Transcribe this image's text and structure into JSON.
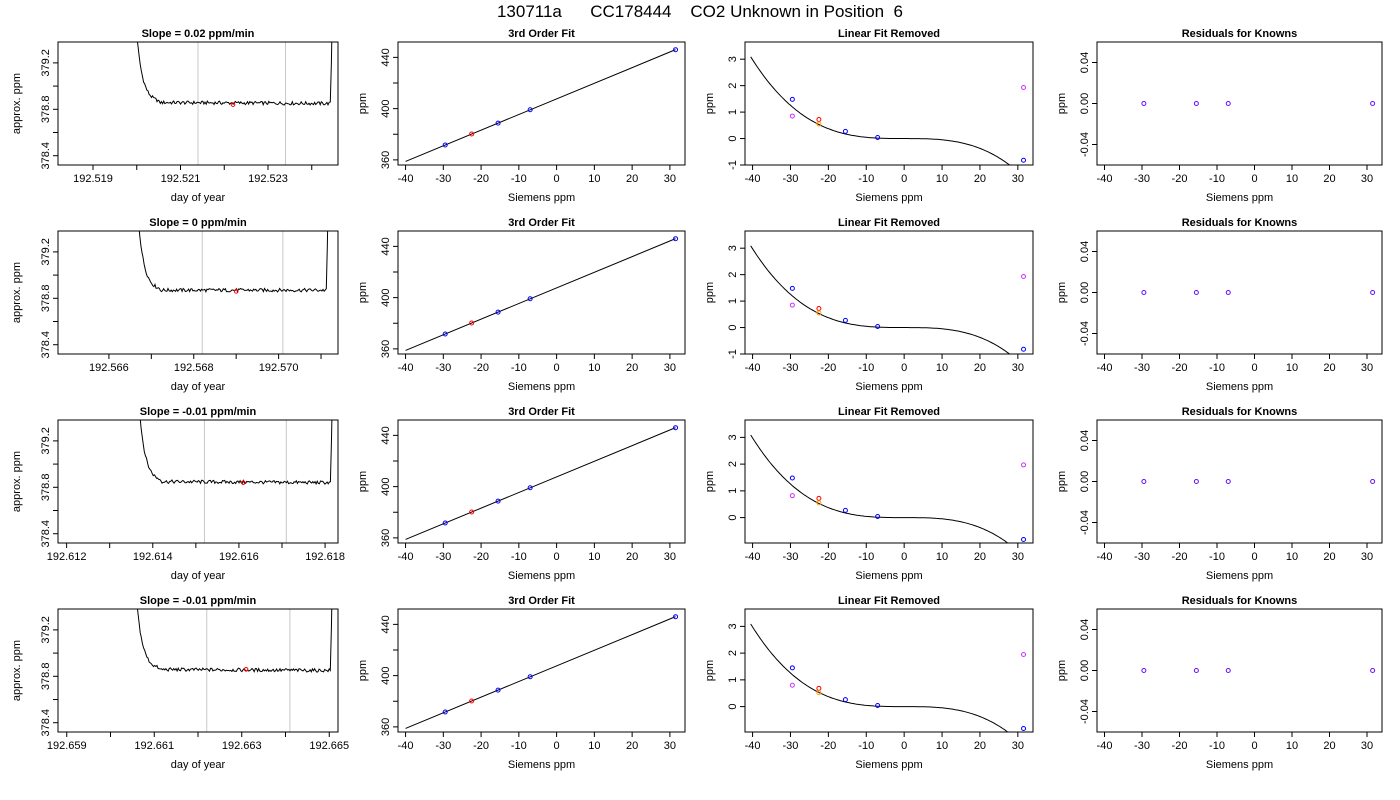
{
  "figure_title": "130711a      CC178444    CO2 Unknown in Position  6",
  "colors": {
    "line": "#000000",
    "ref_line": "#c8c8c8",
    "known": "#0000ff",
    "unknown": "#ff0000",
    "alt1": "#ffa500",
    "alt2": "#cc33ff",
    "resid": "#6a0dff"
  },
  "chart_data": [
    {
      "row": 1,
      "type": "line",
      "title": "Slope =  0.02  ppm/min",
      "xlabel": "day of year",
      "ylabel": "approx. ppm",
      "xlim": [
        192.5182,
        192.5246
      ],
      "ylim": [
        378.32,
        379.38
      ],
      "xticks": [
        192.519,
        192.52,
        192.521,
        192.522,
        192.523,
        192.524
      ],
      "xtick_labels": [
        "192.519",
        "",
        "192.521",
        "",
        "192.523",
        ""
      ],
      "yticks": [
        378.4,
        378.6,
        378.8,
        379.0,
        379.2
      ],
      "ytick_labels": [
        "378.4",
        "",
        "378.8",
        "",
        "379.2"
      ],
      "vlines": [
        192.5214,
        192.5234
      ],
      "x_start": 192.5199,
      "x_end": 192.5245,
      "baseline": 378.86,
      "drift": -0.01,
      "unknown_point": [
        192.5222,
        378.84
      ]
    },
    {
      "row": 1,
      "type": "scatter",
      "title": "3rd Order Fit",
      "xlabel": "Siemens ppm",
      "ylabel": "ppm",
      "xlim": [
        -42,
        34
      ],
      "ylim": [
        356,
        452
      ],
      "xticks": [
        -40,
        -30,
        -20,
        -10,
        0,
        10,
        20,
        30
      ],
      "yticks": [
        360,
        380,
        400,
        420,
        440
      ],
      "ytick_labels": [
        "360",
        "",
        "400",
        "",
        "440"
      ],
      "fit": {
        "slope": 1.22,
        "intercept": 407.6
      },
      "points": [
        {
          "x": -29.5,
          "y": 371.6,
          "s": "known"
        },
        {
          "x": -22.5,
          "y": 380.2,
          "s": "unknown"
        },
        {
          "x": -15.5,
          "y": 388.7,
          "s": "known"
        },
        {
          "x": -7,
          "y": 399.1,
          "s": "known"
        },
        {
          "x": 31.5,
          "y": 446.0,
          "s": "known"
        }
      ]
    },
    {
      "row": 1,
      "type": "scatter",
      "title": "Linear Fit Removed",
      "xlabel": "Siemens ppm",
      "ylabel": "ppm",
      "xlim": [
        -42,
        34
      ],
      "ylim": [
        -1.0,
        3.65
      ],
      "xticks": [
        -40,
        -30,
        -20,
        -10,
        0,
        10,
        20,
        30
      ],
      "yticks": [
        -1,
        0,
        1,
        2,
        3
      ],
      "cubic": [
        0.0,
        0.0,
        0.0,
        -4.65e-05
      ],
      "points": [
        {
          "x": -29.5,
          "y": 1.48,
          "s": "known"
        },
        {
          "x": -29.5,
          "y": 0.85,
          "s": "alt2"
        },
        {
          "x": -22.5,
          "y": 0.72,
          "s": "unknown"
        },
        {
          "x": -22.5,
          "y": 0.55,
          "s": "alt1"
        },
        {
          "x": -15.5,
          "y": 0.27,
          "s": "known"
        },
        {
          "x": -7,
          "y": 0.04,
          "s": "known"
        },
        {
          "x": 31.5,
          "y": -0.82,
          "s": "known"
        },
        {
          "x": 31.5,
          "y": 1.93,
          "s": "alt2"
        }
      ]
    },
    {
      "row": 1,
      "type": "scatter",
      "title": "Residuals for Knowns",
      "xlabel": "Siemens ppm",
      "ylabel": "ppm",
      "xlim": [
        -42,
        34
      ],
      "ylim": [
        -0.06,
        0.06
      ],
      "xticks": [
        -40,
        -30,
        -20,
        -10,
        0,
        10,
        20,
        30
      ],
      "yticks": [
        -0.04,
        0.0,
        0.04
      ],
      "ytick_labels": [
        "-0.04",
        "0.00",
        "0.04"
      ],
      "points": [
        {
          "x": -29.5,
          "y": 0,
          "s": "resid"
        },
        {
          "x": -15.5,
          "y": 0,
          "s": "resid"
        },
        {
          "x": -7,
          "y": 0,
          "s": "resid"
        },
        {
          "x": 31.5,
          "y": 0,
          "s": "resid"
        }
      ]
    },
    {
      "row": 2,
      "type": "line",
      "title": "Slope =  0  ppm/min",
      "xlabel": "day of year",
      "ylabel": "approx. ppm",
      "xlim": [
        192.5648,
        192.5714
      ],
      "ylim": [
        378.32,
        379.38
      ],
      "xticks": [
        192.566,
        192.567,
        192.568,
        192.569,
        192.57,
        192.571
      ],
      "xtick_labels": [
        "192.566",
        "",
        "192.568",
        "",
        "192.570",
        ""
      ],
      "yticks": [
        378.4,
        378.6,
        378.8,
        379.0,
        379.2
      ],
      "ytick_labels": [
        "378.4",
        "",
        "378.8",
        "",
        "379.2"
      ],
      "vlines": [
        192.5682,
        192.5701
      ],
      "x_start": 192.5666,
      "x_end": 192.5712,
      "baseline": 378.87,
      "drift": 0.0,
      "unknown_point": [
        192.569,
        378.86
      ]
    },
    {
      "row": 2,
      "type": "scatter",
      "title": "3rd Order Fit",
      "xlabel": "Siemens ppm",
      "ylabel": "ppm",
      "xlim": [
        -42,
        34
      ],
      "ylim": [
        356,
        452
      ],
      "xticks": [
        -40,
        -30,
        -20,
        -10,
        0,
        10,
        20,
        30
      ],
      "yticks": [
        360,
        380,
        400,
        420,
        440
      ],
      "ytick_labels": [
        "360",
        "",
        "400",
        "",
        "440"
      ],
      "fit": {
        "slope": 1.22,
        "intercept": 407.6
      },
      "points": [
        {
          "x": -29.5,
          "y": 371.6,
          "s": "known"
        },
        {
          "x": -22.5,
          "y": 380.2,
          "s": "unknown"
        },
        {
          "x": -15.5,
          "y": 388.7,
          "s": "known"
        },
        {
          "x": -7,
          "y": 399.1,
          "s": "known"
        },
        {
          "x": 31.5,
          "y": 446.0,
          "s": "known"
        }
      ]
    },
    {
      "row": 2,
      "type": "scatter",
      "title": "Linear Fit Removed",
      "xlabel": "Siemens ppm",
      "ylabel": "ppm",
      "xlim": [
        -42,
        34
      ],
      "ylim": [
        -1.0,
        3.65
      ],
      "xticks": [
        -40,
        -30,
        -20,
        -10,
        0,
        10,
        20,
        30
      ],
      "yticks": [
        -1,
        0,
        1,
        2,
        3
      ],
      "cubic": [
        0.0,
        0.0,
        0.0,
        -4.65e-05
      ],
      "points": [
        {
          "x": -29.5,
          "y": 1.48,
          "s": "known"
        },
        {
          "x": -29.5,
          "y": 0.85,
          "s": "alt2"
        },
        {
          "x": -22.5,
          "y": 0.72,
          "s": "unknown"
        },
        {
          "x": -22.5,
          "y": 0.55,
          "s": "alt1"
        },
        {
          "x": -15.5,
          "y": 0.27,
          "s": "known"
        },
        {
          "x": -7,
          "y": 0.04,
          "s": "known"
        },
        {
          "x": 31.5,
          "y": -0.82,
          "s": "known"
        },
        {
          "x": 31.5,
          "y": 1.93,
          "s": "alt2"
        }
      ]
    },
    {
      "row": 2,
      "type": "scatter",
      "title": "Residuals for Knowns",
      "xlabel": "Siemens ppm",
      "ylabel": "ppm",
      "xlim": [
        -42,
        34
      ],
      "ylim": [
        -0.06,
        0.06
      ],
      "xticks": [
        -40,
        -30,
        -20,
        -10,
        0,
        10,
        20,
        30
      ],
      "yticks": [
        -0.04,
        0.0,
        0.04
      ],
      "ytick_labels": [
        "-0.04",
        "0.00",
        "0.04"
      ],
      "points": [
        {
          "x": -29.5,
          "y": 0,
          "s": "resid"
        },
        {
          "x": -15.5,
          "y": 0,
          "s": "resid"
        },
        {
          "x": -7,
          "y": 0,
          "s": "resid"
        },
        {
          "x": 31.5,
          "y": 0,
          "s": "resid"
        }
      ]
    },
    {
      "row": 3,
      "type": "line",
      "title": "Slope =  -0.01  ppm/min",
      "xlabel": "day of year",
      "ylabel": "approx. ppm",
      "xlim": [
        192.6118,
        192.6183
      ],
      "ylim": [
        378.32,
        379.38
      ],
      "xticks": [
        192.612,
        192.613,
        192.614,
        192.615,
        192.616,
        192.617,
        192.618
      ],
      "xtick_labels": [
        "192.612",
        "",
        "192.614",
        "",
        "192.616",
        "",
        "192.618"
      ],
      "yticks": [
        378.4,
        378.6,
        378.8,
        379.0,
        379.2
      ],
      "ytick_labels": [
        "378.4",
        "",
        "378.8",
        "",
        "379.2"
      ],
      "vlines": [
        192.6152,
        192.6171
      ],
      "x_start": 192.6136,
      "x_end": 192.6182,
      "baseline": 378.85,
      "drift": -0.01,
      "unknown_point": [
        192.6161,
        378.84
      ]
    },
    {
      "row": 3,
      "type": "scatter",
      "title": "3rd Order Fit",
      "xlabel": "Siemens ppm",
      "ylabel": "ppm",
      "xlim": [
        -42,
        34
      ],
      "ylim": [
        356,
        452
      ],
      "xticks": [
        -40,
        -30,
        -20,
        -10,
        0,
        10,
        20,
        30
      ],
      "yticks": [
        360,
        380,
        400,
        420,
        440
      ],
      "ytick_labels": [
        "360",
        "",
        "400",
        "",
        "440"
      ],
      "fit": {
        "slope": 1.22,
        "intercept": 407.6
      },
      "points": [
        {
          "x": -29.5,
          "y": 371.6,
          "s": "known"
        },
        {
          "x": -22.5,
          "y": 380.2,
          "s": "unknown"
        },
        {
          "x": -15.5,
          "y": 388.7,
          "s": "known"
        },
        {
          "x": -7,
          "y": 399.1,
          "s": "known"
        },
        {
          "x": 31.5,
          "y": 446.0,
          "s": "known"
        }
      ]
    },
    {
      "row": 3,
      "type": "scatter",
      "title": "Linear Fit Removed",
      "xlabel": "Siemens ppm",
      "ylabel": "ppm",
      "xlim": [
        -42,
        34
      ],
      "ylim": [
        -0.95,
        3.65
      ],
      "xticks": [
        -40,
        -30,
        -20,
        -10,
        0,
        10,
        20,
        30
      ],
      "yticks": [
        0,
        1,
        2,
        3
      ],
      "cubic": [
        0.0,
        0.0,
        0.0,
        -4.65e-05
      ],
      "points": [
        {
          "x": -29.5,
          "y": 1.48,
          "s": "known"
        },
        {
          "x": -29.5,
          "y": 0.82,
          "s": "alt2"
        },
        {
          "x": -22.5,
          "y": 0.72,
          "s": "unknown"
        },
        {
          "x": -22.5,
          "y": 0.55,
          "s": "alt1"
        },
        {
          "x": -15.5,
          "y": 0.27,
          "s": "known"
        },
        {
          "x": -7,
          "y": 0.04,
          "s": "known"
        },
        {
          "x": 31.5,
          "y": -0.82,
          "s": "known"
        },
        {
          "x": 31.5,
          "y": 1.97,
          "s": "alt2"
        }
      ]
    },
    {
      "row": 3,
      "type": "scatter",
      "title": "Residuals for Knowns",
      "xlabel": "Siemens ppm",
      "ylabel": "ppm",
      "xlim": [
        -42,
        34
      ],
      "ylim": [
        -0.06,
        0.06
      ],
      "xticks": [
        -40,
        -30,
        -20,
        -10,
        0,
        10,
        20,
        30
      ],
      "yticks": [
        -0.04,
        0.0,
        0.04
      ],
      "ytick_labels": [
        "-0.04",
        "0.00",
        "0.04"
      ],
      "points": [
        {
          "x": -29.5,
          "y": 0,
          "s": "resid"
        },
        {
          "x": -15.5,
          "y": 0,
          "s": "resid"
        },
        {
          "x": -7,
          "y": 0,
          "s": "resid"
        },
        {
          "x": 31.5,
          "y": 0,
          "s": "resid"
        }
      ]
    },
    {
      "row": 4,
      "type": "line",
      "title": "Slope =  -0.01  ppm/min",
      "xlabel": "day of year",
      "ylabel": "approx. ppm",
      "xlim": [
        192.6588,
        192.6652
      ],
      "ylim": [
        378.32,
        379.38
      ],
      "xticks": [
        192.659,
        192.66,
        192.661,
        192.662,
        192.663,
        192.664,
        192.665
      ],
      "xtick_labels": [
        "192.659",
        "",
        "192.661",
        "",
        "192.663",
        "",
        "192.665"
      ],
      "yticks": [
        378.4,
        378.6,
        378.8,
        379.0,
        379.2
      ],
      "ytick_labels": [
        "378.4",
        "",
        "378.8",
        "",
        "379.2"
      ],
      "vlines": [
        192.6622,
        192.6641
      ],
      "x_start": 192.6605,
      "x_end": 192.6651,
      "baseline": 378.86,
      "drift": -0.01,
      "unknown_point": [
        192.6631,
        378.86
      ]
    },
    {
      "row": 4,
      "type": "scatter",
      "title": "3rd Order Fit",
      "xlabel": "Siemens ppm",
      "ylabel": "ppm",
      "xlim": [
        -42,
        34
      ],
      "ylim": [
        356,
        452
      ],
      "xticks": [
        -40,
        -30,
        -20,
        -10,
        0,
        10,
        20,
        30
      ],
      "yticks": [
        360,
        380,
        400,
        420,
        440
      ],
      "ytick_labels": [
        "360",
        "",
        "400",
        "",
        "440"
      ],
      "fit": {
        "slope": 1.22,
        "intercept": 407.6
      },
      "points": [
        {
          "x": -29.5,
          "y": 371.6,
          "s": "known"
        },
        {
          "x": -22.5,
          "y": 380.2,
          "s": "unknown"
        },
        {
          "x": -15.5,
          "y": 388.7,
          "s": "known"
        },
        {
          "x": -7,
          "y": 399.1,
          "s": "known"
        },
        {
          "x": 31.5,
          "y": 446.0,
          "s": "known"
        }
      ]
    },
    {
      "row": 4,
      "type": "scatter",
      "title": "Linear Fit Removed",
      "xlabel": "Siemens ppm",
      "ylabel": "ppm",
      "xlim": [
        -42,
        34
      ],
      "ylim": [
        -0.95,
        3.65
      ],
      "xticks": [
        -40,
        -30,
        -20,
        -10,
        0,
        10,
        20,
        30
      ],
      "yticks": [
        0,
        1,
        2,
        3
      ],
      "cubic": [
        0.0,
        0.0,
        0.0,
        -4.65e-05
      ],
      "points": [
        {
          "x": -29.5,
          "y": 1.45,
          "s": "known"
        },
        {
          "x": -29.5,
          "y": 0.8,
          "s": "alt2"
        },
        {
          "x": -22.5,
          "y": 0.68,
          "s": "unknown"
        },
        {
          "x": -22.5,
          "y": 0.52,
          "s": "alt1"
        },
        {
          "x": -15.5,
          "y": 0.26,
          "s": "known"
        },
        {
          "x": -7,
          "y": 0.04,
          "s": "known"
        },
        {
          "x": 31.5,
          "y": -0.82,
          "s": "known"
        },
        {
          "x": 31.5,
          "y": 1.95,
          "s": "alt2"
        }
      ]
    },
    {
      "row": 4,
      "type": "scatter",
      "title": "Residuals for Knowns",
      "xlabel": "Siemens ppm",
      "ylabel": "ppm",
      "xlim": [
        -42,
        34
      ],
      "ylim": [
        -0.06,
        0.06
      ],
      "xticks": [
        -40,
        -30,
        -20,
        -10,
        0,
        10,
        20,
        30
      ],
      "yticks": [
        -0.04,
        0.0,
        0.04
      ],
      "ytick_labels": [
        "-0.04",
        "0.00",
        "0.04"
      ],
      "points": [
        {
          "x": -29.5,
          "y": 0,
          "s": "resid"
        },
        {
          "x": -15.5,
          "y": 0,
          "s": "resid"
        },
        {
          "x": -7,
          "y": 0,
          "s": "resid"
        },
        {
          "x": 31.5,
          "y": 0,
          "s": "resid"
        }
      ]
    }
  ]
}
